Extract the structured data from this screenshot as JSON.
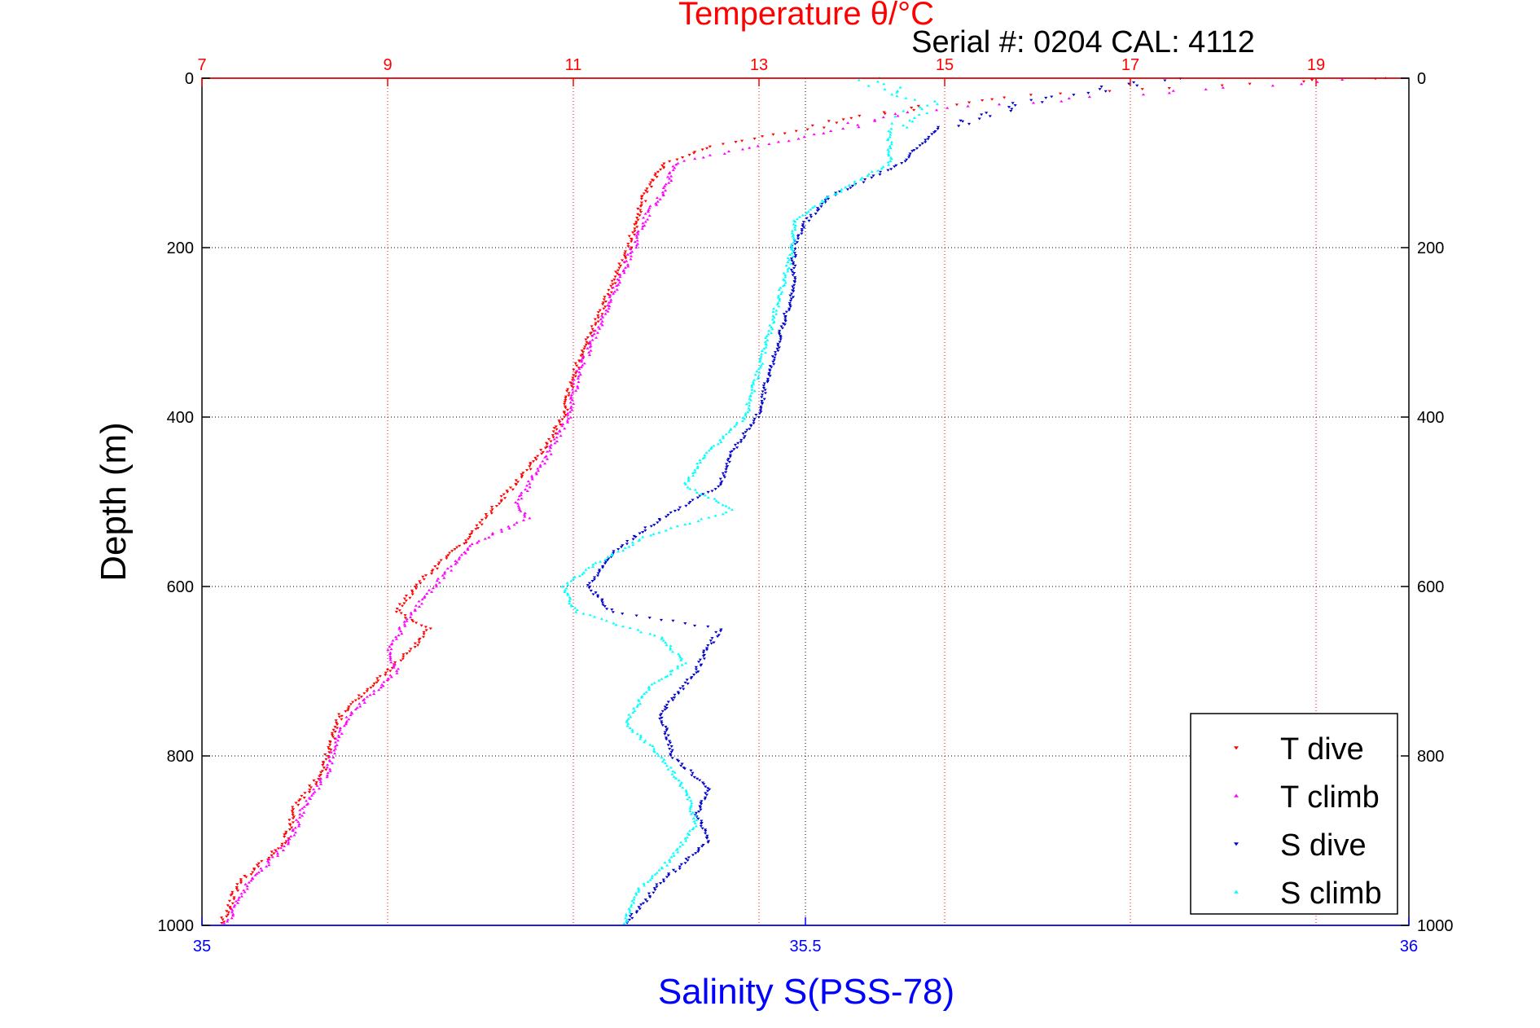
{
  "chart_data": {
    "type": "scatter",
    "title": "Temperature θ/°C",
    "subtitle": "Serial #: 0204  CAL: 4112",
    "xlabel": "Salinity S(PSS-78)",
    "ylabel": "Depth (m)",
    "x_top": {
      "ticks": [
        "7",
        "9",
        "11",
        "13",
        "15",
        "17",
        "19"
      ],
      "range": [
        7,
        20
      ],
      "color": "#ff0000"
    },
    "x_bottom": {
      "ticks": [
        "35",
        "35.5",
        "36"
      ],
      "range": [
        35,
        36
      ],
      "color": "#0000ff"
    },
    "y": {
      "ticks": [
        "0",
        "200",
        "400",
        "600",
        "800",
        "1000"
      ],
      "range": [
        0,
        1000
      ],
      "inverted": true
    },
    "grid": true,
    "legend_position": "bottom-right",
    "colors": {
      "t_dive": "#ff0000",
      "t_climb": "#ff00ff",
      "s_dive": "#0000cc",
      "s_climb": "#00ffff",
      "title": "#ff0000",
      "xlabel": "#0000ff"
    },
    "series": [
      {
        "name": "T dive",
        "axis": "temperature",
        "marker": "down-triangle",
        "color": "#ff0000",
        "depth": [
          0,
          20,
          40,
          60,
          80,
          100,
          130,
          160,
          200,
          250,
          300,
          350,
          400,
          450,
          500,
          550,
          600,
          630,
          650,
          670,
          700,
          750,
          780,
          820,
          860,
          900,
          950,
          1000
        ],
        "value": [
          19.5,
          16.0,
          14.3,
          13.5,
          12.5,
          12.0,
          11.8,
          11.7,
          11.6,
          11.4,
          11.2,
          11.0,
          10.9,
          10.6,
          10.2,
          9.8,
          9.3,
          9.1,
          9.45,
          9.3,
          9.0,
          8.5,
          8.4,
          8.3,
          8.0,
          7.9,
          7.4,
          7.2
        ]
      },
      {
        "name": "T climb",
        "axis": "temperature",
        "marker": "up-triangle",
        "color": "#ff00ff",
        "depth": [
          0,
          20,
          40,
          60,
          80,
          100,
          130,
          160,
          200,
          250,
          300,
          350,
          400,
          450,
          500,
          520,
          550,
          600,
          640,
          680,
          700,
          750,
          780,
          820,
          860,
          900,
          950,
          1000
        ],
        "value": [
          19.6,
          17.0,
          14.5,
          13.9,
          13.0,
          12.1,
          12.0,
          11.8,
          11.65,
          11.45,
          11.25,
          11.05,
          10.95,
          10.7,
          10.4,
          10.5,
          9.9,
          9.5,
          9.2,
          9.0,
          9.1,
          8.6,
          8.45,
          8.35,
          8.1,
          7.95,
          7.5,
          7.25
        ]
      },
      {
        "name": "S dive",
        "axis": "salinity",
        "marker": "down-triangle",
        "color": "#0000cc",
        "depth": [
          0,
          30,
          60,
          100,
          140,
          170,
          200,
          250,
          300,
          350,
          400,
          440,
          480,
          520,
          560,
          600,
          630,
          650,
          670,
          700,
          750,
          800,
          840,
          870,
          900,
          950,
          1000
        ],
        "value": [
          35.8,
          35.68,
          35.61,
          35.58,
          35.52,
          35.5,
          35.49,
          35.49,
          35.48,
          35.47,
          35.46,
          35.44,
          35.43,
          35.38,
          35.34,
          35.32,
          35.34,
          35.43,
          35.42,
          35.41,
          35.38,
          35.39,
          35.42,
          35.41,
          35.42,
          35.38,
          35.35
        ]
      },
      {
        "name": "S climb",
        "axis": "salinity",
        "marker": "up-triangle",
        "color": "#00ffff",
        "depth": [
          0,
          30,
          60,
          100,
          140,
          170,
          200,
          250,
          300,
          350,
          400,
          440,
          480,
          510,
          540,
          570,
          600,
          630,
          660,
          690,
          720,
          760,
          800,
          840,
          880,
          920,
          960,
          1000
        ],
        "value": [
          35.55,
          35.6,
          35.57,
          35.57,
          35.52,
          35.49,
          35.49,
          35.48,
          35.47,
          35.46,
          35.45,
          35.42,
          35.4,
          35.44,
          35.37,
          35.33,
          35.3,
          35.31,
          35.38,
          35.4,
          35.37,
          35.35,
          35.38,
          35.4,
          35.41,
          35.39,
          35.36,
          35.35
        ]
      }
    ]
  }
}
